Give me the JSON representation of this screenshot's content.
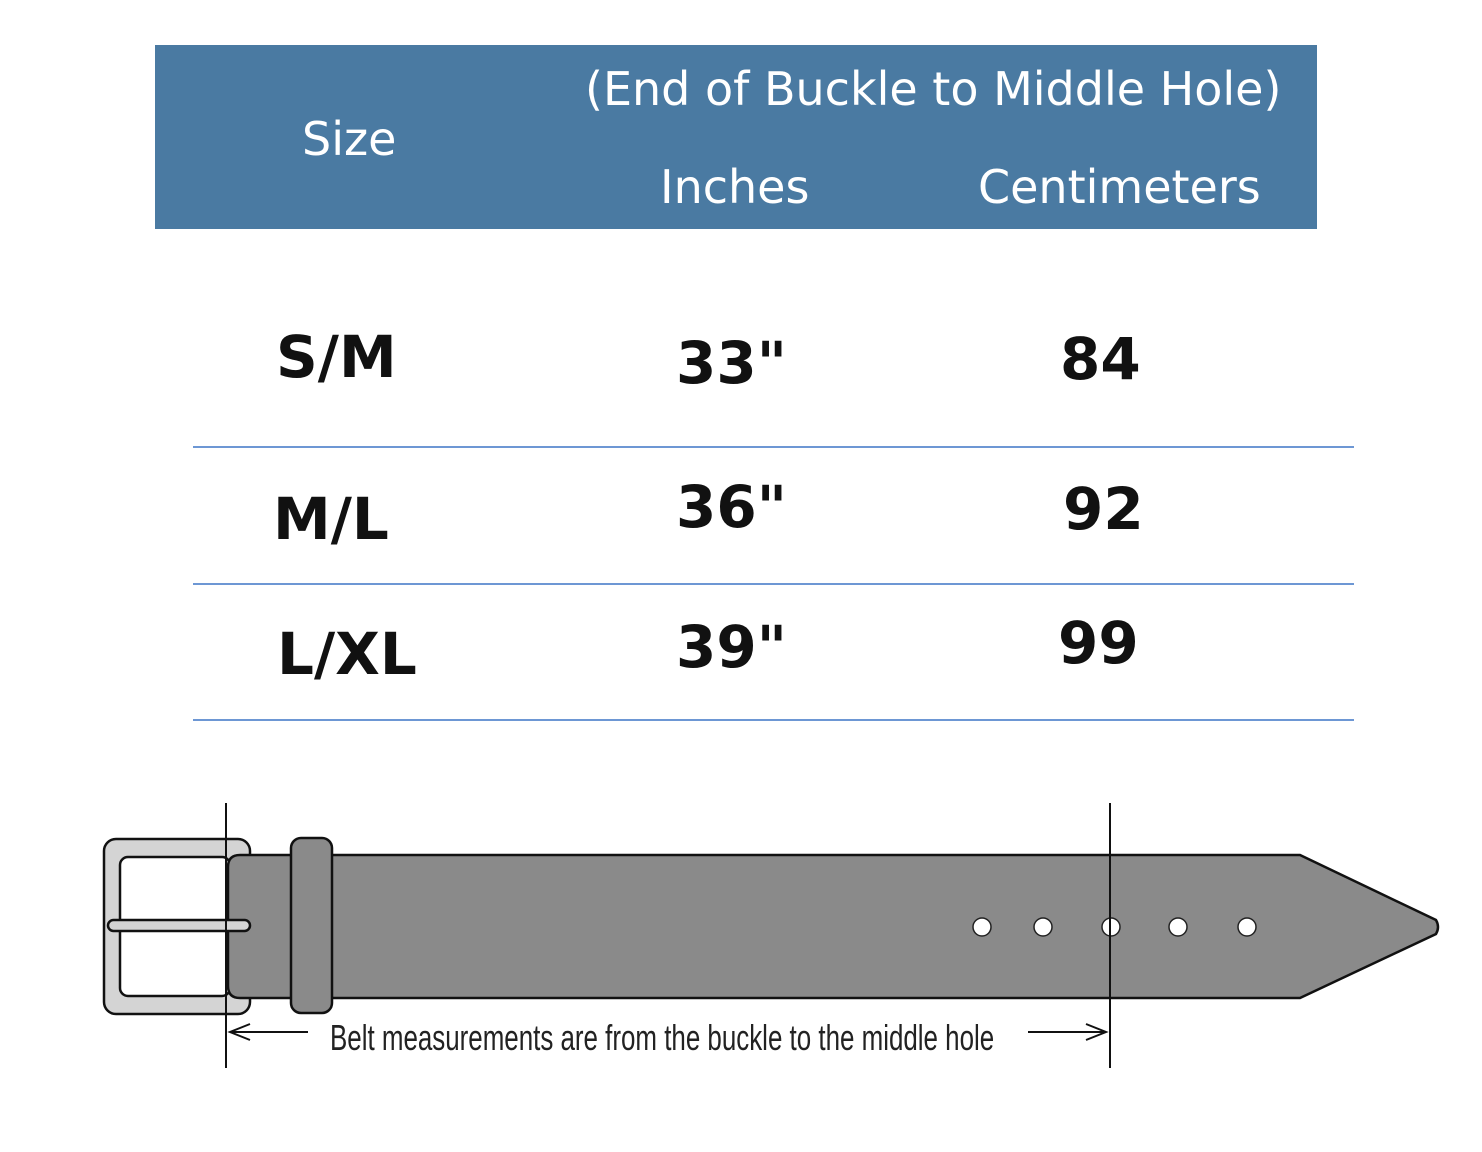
{
  "header": {
    "size_label": "Size",
    "measurement_note": "(End of Buckle to Middle Hole)",
    "inches_label": "Inches",
    "centimeters_label": "Centimeters",
    "background_color": "#4a7aa2"
  },
  "rows": [
    {
      "size": "S/M",
      "inches": "33\"",
      "centimeters": "84"
    },
    {
      "size": "M/L",
      "inches": "36\"",
      "centimeters": "92"
    },
    {
      "size": "L/XL",
      "inches": "39\"",
      "centimeters": "99"
    }
  ],
  "diagram": {
    "caption": "Belt measurements are from the buckle to the middle hole",
    "belt_color": "#8a8a8a",
    "buckle_color": "#d4d4d4"
  }
}
